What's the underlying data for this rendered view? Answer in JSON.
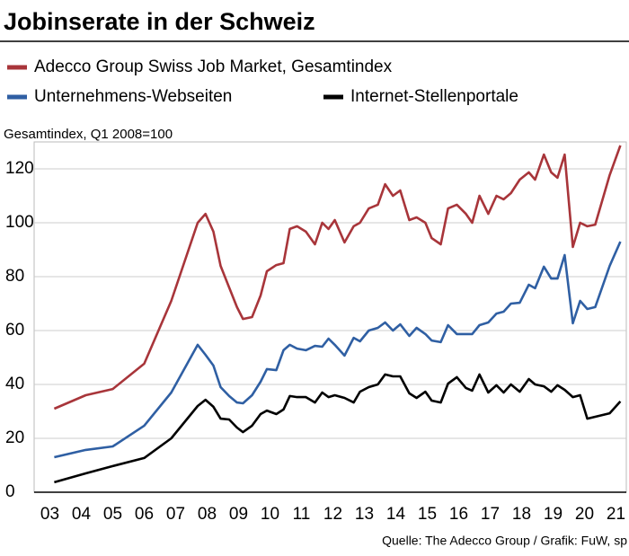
{
  "chart_data": {
    "type": "line",
    "title": "Jobinserate in der Schweiz",
    "y_label": "Gesamtindex, Q1 2008=100",
    "source": "Quelle: The Adecco Group / Grafik: FuW, sp",
    "legend": "top",
    "grid": true,
    "x": [
      2003.64,
      2004.64,
      2005.5,
      2006.5,
      2007.36,
      2008.2,
      2008.45,
      2008.7,
      2008.93,
      2009.2,
      2009.45,
      2009.64,
      2009.93,
      2010.2,
      2010.4,
      2010.7,
      2010.93,
      2011.13,
      2011.36,
      2011.64,
      2011.93,
      2012.16,
      2012.36,
      2012.56,
      2012.87,
      2013.16,
      2013.36,
      2013.64,
      2013.93,
      2014.16,
      2014.41,
      2014.64,
      2014.93,
      2015.16,
      2015.44,
      2015.64,
      2015.93,
      2016.16,
      2016.44,
      2016.73,
      2016.93,
      2017.16,
      2017.44,
      2017.7,
      2017.93,
      2018.16,
      2018.44,
      2018.73,
      2018.93,
      2019.21,
      2019.44,
      2019.64,
      2019.87,
      2020.13,
      2020.36,
      2020.59,
      2020.84,
      2021.3,
      2021.64
    ],
    "series": [
      {
        "name": "Adecco Group Swiss Job Market, Gesamtindex",
        "color": "#a8353a",
        "values": [
          31,
          36,
          38.3,
          47.7,
          71,
          100,
          103.3,
          96.7,
          84,
          76,
          68.7,
          64.3,
          65,
          73,
          82,
          84.3,
          85,
          97.7,
          98.7,
          96.7,
          92,
          100,
          97.7,
          101,
          92.7,
          98.7,
          100,
          105.3,
          106.7,
          114.3,
          110,
          112,
          101,
          102,
          100,
          94.3,
          92,
          105.3,
          106.7,
          103.3,
          100,
          110,
          103.3,
          110,
          108.7,
          111,
          116,
          118.7,
          116,
          125.3,
          118.7,
          116.7,
          125.3,
          91,
          100,
          98.7,
          99.3,
          117.7,
          128.7
        ]
      },
      {
        "name": "Unternehmens-Webseiten",
        "color": "#2f5fa3",
        "values": [
          13,
          15.7,
          17,
          24.7,
          37,
          54.7,
          51,
          47,
          39,
          35.7,
          33.3,
          33,
          36,
          41,
          45.7,
          45.3,
          52.7,
          54.7,
          53.3,
          52.7,
          54.3,
          54,
          57,
          54.7,
          50.7,
          57.3,
          56,
          60,
          61,
          63,
          60,
          62.3,
          58,
          61,
          58.7,
          56.3,
          55.7,
          62,
          58.7,
          58.7,
          58.7,
          62,
          63,
          66.3,
          67,
          70,
          70.3,
          77,
          75.7,
          83.7,
          79.3,
          79.3,
          88,
          62.7,
          71,
          68,
          68.7,
          84,
          93
        ]
      },
      {
        "name": "Internet-Stellenportale",
        "color": "#000000",
        "values": [
          3.7,
          7,
          9.7,
          12.7,
          20,
          32,
          34.3,
          31.7,
          27.3,
          27,
          24,
          22.3,
          24.7,
          29,
          30.3,
          29,
          30.7,
          35.7,
          35.3,
          35.3,
          33.3,
          37,
          35.3,
          36,
          35,
          33.3,
          37.3,
          39,
          40,
          43.7,
          43,
          43,
          36.7,
          35,
          37.3,
          34,
          33.3,
          40.3,
          42.7,
          38.7,
          37.7,
          43.7,
          37,
          39.7,
          37,
          40,
          37.3,
          42,
          40,
          39.3,
          37.3,
          39.7,
          38,
          35.3,
          36,
          27.3,
          28,
          29.3,
          33.7
        ]
      }
    ],
    "xlim": [
      2003,
      2021.83
    ],
    "xticks": [
      {
        "value": 2003.5,
        "label": "03"
      },
      {
        "value": 2004.5,
        "label": "04"
      },
      {
        "value": 2005.5,
        "label": "05"
      },
      {
        "value": 2006.5,
        "label": "06"
      },
      {
        "value": 2007.5,
        "label": "07"
      },
      {
        "value": 2008.5,
        "label": "08"
      },
      {
        "value": 2009.5,
        "label": "09"
      },
      {
        "value": 2010.5,
        "label": "10"
      },
      {
        "value": 2011.5,
        "label": "11"
      },
      {
        "value": 2012.5,
        "label": "12"
      },
      {
        "value": 2013.5,
        "label": "13"
      },
      {
        "value": 2014.5,
        "label": "14"
      },
      {
        "value": 2015.5,
        "label": "15"
      },
      {
        "value": 2016.5,
        "label": "16"
      },
      {
        "value": 2017.5,
        "label": "17"
      },
      {
        "value": 2018.5,
        "label": "18"
      },
      {
        "value": 2019.5,
        "label": "19"
      },
      {
        "value": 2020.5,
        "label": "20"
      },
      {
        "value": 2021.5,
        "label": "21"
      }
    ],
    "ylim": [
      0,
      130
    ],
    "yticks": [
      0,
      20,
      40,
      60,
      80,
      100,
      120
    ]
  }
}
